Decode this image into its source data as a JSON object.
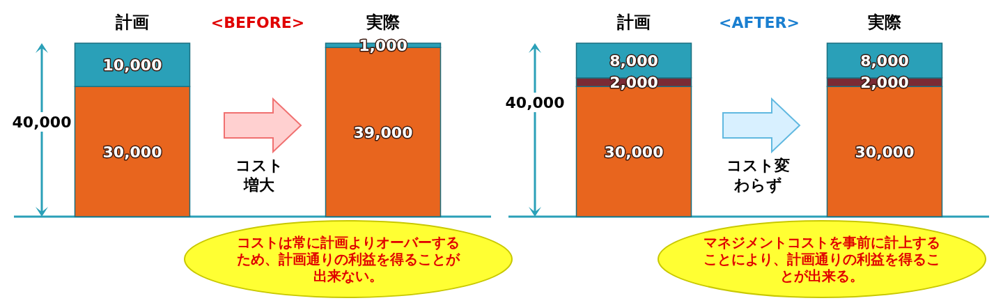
{
  "chart_data": [
    {
      "type": "bar",
      "stacked": true,
      "title": "<BEFORE>",
      "categories": [
        "計画",
        "実際"
      ],
      "series": [
        {
          "color": "#e8651e",
          "values": [
            30000,
            39000
          ],
          "value_labels": [
            "30,000",
            "39,000"
          ]
        },
        {
          "color": "#2aa0b8",
          "values": [
            10000,
            1000
          ],
          "value_labels": [
            "10,000",
            "1,000"
          ]
        }
      ],
      "annotations": [
        "40,000",
        "コスト増大",
        "コストは常に計画よりオーバーするため、計画通りの利益を得ることが出来ない。"
      ]
    },
    {
      "type": "bar",
      "stacked": true,
      "title": "<AFTER>",
      "categories": [
        "計画",
        "実際"
      ],
      "series": [
        {
          "color": "#e8651e",
          "values": [
            30000,
            30000
          ],
          "value_labels": [
            "30,000",
            "30,000"
          ]
        },
        {
          "color": "#7a2a35",
          "values": [
            2000,
            2000
          ],
          "value_labels": [
            "2,000",
            "2,000"
          ]
        },
        {
          "color": "#2aa0b8",
          "values": [
            8000,
            8000
          ],
          "value_labels": [
            "8,000",
            "8,000"
          ]
        }
      ],
      "annotations": [
        "40,000",
        "コスト変わらず",
        "マネジメントコストを事前に計上することにより、計画通りの利益を得ることが出来る。"
      ]
    }
  ]
}
